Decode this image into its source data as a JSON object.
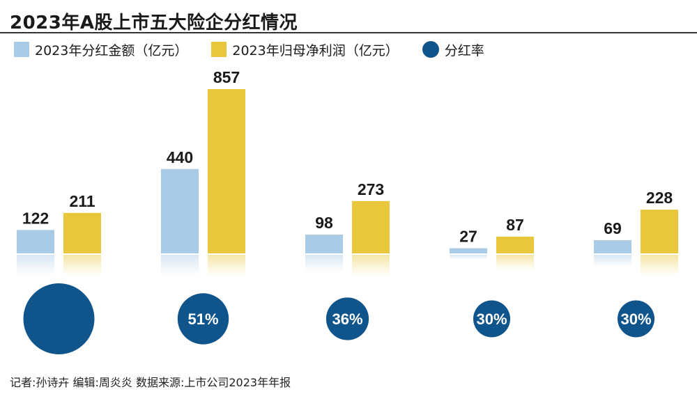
{
  "title": "2023年A股上市五大险企分红情况",
  "legend": {
    "dividend": "2023年分红金额（亿元）",
    "profit": "2023年归母净利润（亿元）",
    "rate": "分红率"
  },
  "colors": {
    "dividend": "#a9cbe6",
    "profit": "#e8c73c",
    "rate": "#10548c"
  },
  "footer": "记者:孙诗卉   编辑:周炎炎   数据来源:上市公司2023年年报",
  "chart_data": {
    "type": "bar",
    "categories": [
      "",
      "",
      "",
      "",
      ""
    ],
    "series": [
      {
        "name": "2023年分红金额（亿元）",
        "values": [
          122,
          440,
          98,
          27,
          69
        ]
      },
      {
        "name": "2023年归母净利润（亿元）",
        "values": [
          211,
          857,
          273,
          87,
          228
        ]
      }
    ],
    "payout_ratio": {
      "name": "分红率",
      "labels": [
        "",
        "51%",
        "36%",
        "30%",
        "30%"
      ],
      "relative_size": [
        1.0,
        0.72,
        0.6,
        0.52,
        0.52
      ]
    }
  }
}
